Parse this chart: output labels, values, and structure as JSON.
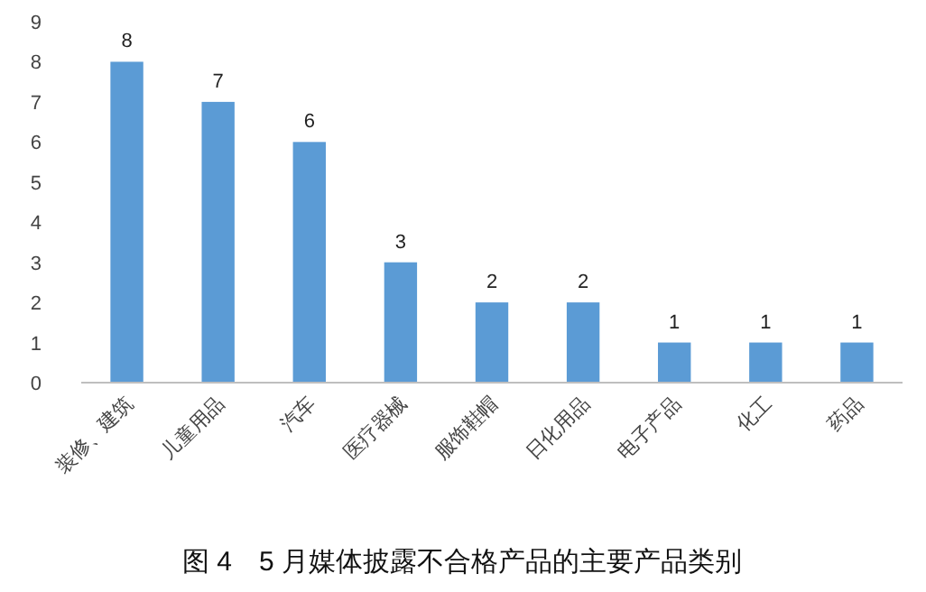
{
  "chart_data": {
    "type": "bar",
    "title": "图 4　5 月媒体披露不合格产品的主要产品类别",
    "categories": [
      "装修、建筑",
      "儿童用品",
      "汽车",
      "医疗器械",
      "服饰鞋帽",
      "日化用品",
      "电子产品",
      "化工",
      "药品"
    ],
    "values": [
      8,
      7,
      6,
      3,
      2,
      2,
      1,
      1,
      1
    ],
    "color": "#5b9bd5",
    "ylim": [
      0,
      9
    ],
    "yticks": [
      0,
      1,
      2,
      3,
      4,
      5,
      6,
      7,
      8,
      9
    ],
    "data_labels": true,
    "grid": false
  }
}
